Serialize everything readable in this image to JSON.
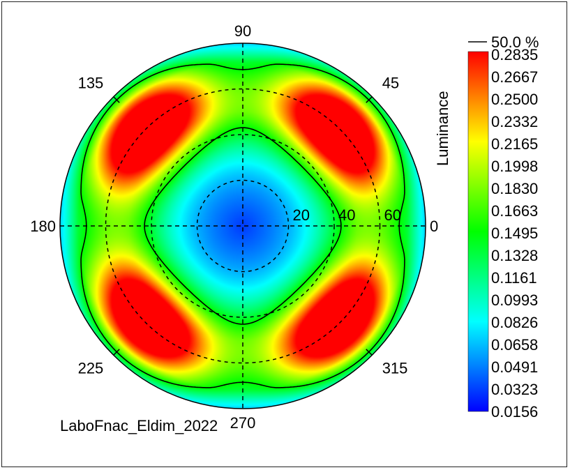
{
  "chart_data": {
    "type": "heatmap",
    "projection": "polar",
    "title": "",
    "colorbar_label": "Luminance",
    "colorbar_range": [
      0.0156,
      0.2835
    ],
    "colorbar_ticks": [
      "0.2835",
      "0.2667",
      "0.2500",
      "0.2332",
      "0.2165",
      "0.1998",
      "0.1830",
      "0.1663",
      "0.1495",
      "0.1328",
      "0.1161",
      "0.0993",
      "0.0826",
      "0.0658",
      "0.0491",
      "0.0323",
      "0.0156"
    ],
    "contour": {
      "label": "50.0 %",
      "value_fraction": 0.5
    },
    "angle_labels": [
      {
        "deg": 0,
        "text": "0"
      },
      {
        "deg": 45,
        "text": "45"
      },
      {
        "deg": 90,
        "text": "90"
      },
      {
        "deg": 135,
        "text": "135"
      },
      {
        "deg": 180,
        "text": "180"
      },
      {
        "deg": 225,
        "text": "225"
      },
      {
        "deg": 270,
        "text": "270"
      },
      {
        "deg": 315,
        "text": "315"
      }
    ],
    "radial_rings": [
      20,
      40,
      60
    ],
    "radial_labels": [
      "20",
      "40",
      "60"
    ],
    "radial_max": 80,
    "lobe_centers_deg": [
      45,
      135,
      225,
      315
    ],
    "peak_inclination": 60,
    "footer_text": "LaboFnac_Eldim_2022"
  },
  "colors": {
    "colormap": [
      "#0000ff",
      "#0080ff",
      "#00ffff",
      "#00ff80",
      "#00ff00",
      "#80ff00",
      "#ffff00",
      "#ff8000",
      "#ff0000"
    ],
    "grid": "#000000",
    "frame": "#222222"
  }
}
